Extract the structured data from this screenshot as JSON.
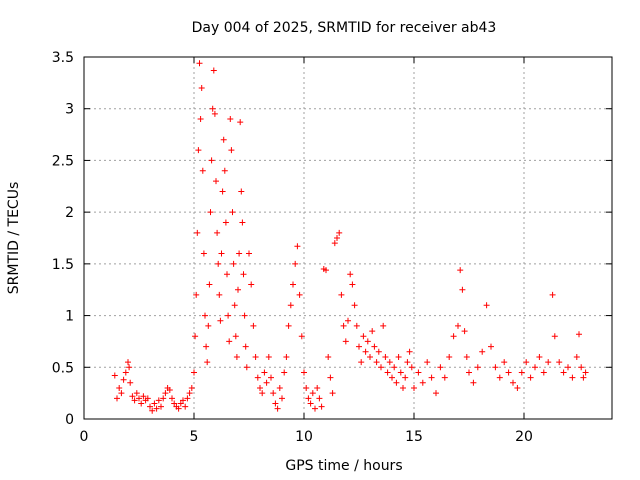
{
  "chart_data": {
    "type": "scatter",
    "title": "Day 004 of 2025, SRMTID for receiver ab43",
    "xlabel": "GPS time / hours",
    "ylabel": "SRMTID / TECUs",
    "xlim": [
      0,
      24
    ],
    "ylim": [
      0,
      3.5
    ],
    "xticks": [
      0,
      5,
      10,
      15,
      20
    ],
    "xtick_labels": [
      "0",
      "5",
      "10",
      "15",
      "20"
    ],
    "yticks": [
      0,
      0.5,
      1,
      1.5,
      2,
      2.5,
      3,
      3.5
    ],
    "ytick_labels": [
      "0",
      "0.5",
      "1",
      "1.5",
      "2",
      "2.5",
      "3",
      "3.5"
    ],
    "grid": true,
    "marker": "plus",
    "color": "#ff0000",
    "series": [
      {
        "name": "SRMTID",
        "points": [
          [
            1.4,
            0.42
          ],
          [
            1.5,
            0.2
          ],
          [
            1.6,
            0.3
          ],
          [
            1.7,
            0.25
          ],
          [
            1.8,
            0.38
          ],
          [
            1.9,
            0.45
          ],
          [
            2.0,
            0.55
          ],
          [
            2.05,
            0.5
          ],
          [
            2.1,
            0.35
          ],
          [
            2.2,
            0.22
          ],
          [
            2.3,
            0.18
          ],
          [
            2.4,
            0.25
          ],
          [
            2.5,
            0.2
          ],
          [
            2.6,
            0.15
          ],
          [
            2.7,
            0.22
          ],
          [
            2.8,
            0.18
          ],
          [
            2.9,
            0.2
          ],
          [
            3.0,
            0.12
          ],
          [
            3.1,
            0.08
          ],
          [
            3.2,
            0.15
          ],
          [
            3.3,
            0.1
          ],
          [
            3.4,
            0.18
          ],
          [
            3.5,
            0.12
          ],
          [
            3.6,
            0.2
          ],
          [
            3.7,
            0.25
          ],
          [
            3.8,
            0.3
          ],
          [
            3.9,
            0.28
          ],
          [
            4.0,
            0.2
          ],
          [
            4.1,
            0.15
          ],
          [
            4.2,
            0.12
          ],
          [
            4.3,
            0.1
          ],
          [
            4.4,
            0.15
          ],
          [
            4.5,
            0.18
          ],
          [
            4.6,
            0.12
          ],
          [
            4.7,
            0.2
          ],
          [
            4.8,
            0.25
          ],
          [
            4.9,
            0.3
          ],
          [
            5.0,
            0.45
          ],
          [
            5.05,
            0.8
          ],
          [
            5.1,
            1.2
          ],
          [
            5.15,
            1.8
          ],
          [
            5.2,
            2.6
          ],
          [
            5.25,
            3.44
          ],
          [
            5.3,
            2.9
          ],
          [
            5.35,
            3.2
          ],
          [
            5.4,
            2.4
          ],
          [
            5.45,
            1.6
          ],
          [
            5.5,
            1.0
          ],
          [
            5.55,
            0.7
          ],
          [
            5.6,
            0.55
          ],
          [
            5.65,
            0.9
          ],
          [
            5.7,
            1.3
          ],
          [
            5.75,
            2.0
          ],
          [
            5.8,
            2.5
          ],
          [
            5.85,
            3.0
          ],
          [
            5.9,
            3.37
          ],
          [
            5.95,
            2.95
          ],
          [
            6.0,
            2.3
          ],
          [
            6.05,
            1.8
          ],
          [
            6.1,
            1.5
          ],
          [
            6.15,
            1.2
          ],
          [
            6.2,
            0.95
          ],
          [
            6.25,
            1.6
          ],
          [
            6.3,
            2.2
          ],
          [
            6.35,
            2.7
          ],
          [
            6.4,
            2.4
          ],
          [
            6.45,
            1.9
          ],
          [
            6.5,
            1.4
          ],
          [
            6.55,
            1.0
          ],
          [
            6.6,
            0.75
          ],
          [
            6.65,
            2.9
          ],
          [
            6.7,
            2.6
          ],
          [
            6.75,
            2.0
          ],
          [
            6.8,
            1.5
          ],
          [
            6.85,
            1.1
          ],
          [
            6.9,
            0.8
          ],
          [
            6.95,
            0.6
          ],
          [
            7.0,
            1.25
          ],
          [
            7.05,
            1.6
          ],
          [
            7.1,
            2.87
          ],
          [
            7.15,
            2.2
          ],
          [
            7.2,
            1.9
          ],
          [
            7.25,
            1.4
          ],
          [
            7.3,
            1.0
          ],
          [
            7.35,
            0.7
          ],
          [
            7.4,
            0.5
          ],
          [
            7.5,
            1.6
          ],
          [
            7.6,
            1.3
          ],
          [
            7.7,
            0.9
          ],
          [
            7.8,
            0.6
          ],
          [
            7.9,
            0.4
          ],
          [
            8.0,
            0.3
          ],
          [
            8.1,
            0.25
          ],
          [
            8.2,
            0.45
          ],
          [
            8.3,
            0.35
          ],
          [
            8.4,
            0.6
          ],
          [
            8.5,
            0.4
          ],
          [
            8.6,
            0.25
          ],
          [
            8.7,
            0.15
          ],
          [
            8.8,
            0.1
          ],
          [
            8.9,
            0.3
          ],
          [
            9.0,
            0.2
          ],
          [
            9.1,
            0.45
          ],
          [
            9.2,
            0.6
          ],
          [
            9.3,
            0.9
          ],
          [
            9.4,
            1.1
          ],
          [
            9.5,
            1.3
          ],
          [
            9.6,
            1.5
          ],
          [
            9.7,
            1.67
          ],
          [
            9.8,
            1.2
          ],
          [
            9.9,
            0.8
          ],
          [
            10.0,
            0.45
          ],
          [
            10.1,
            0.3
          ],
          [
            10.2,
            0.2
          ],
          [
            10.3,
            0.15
          ],
          [
            10.4,
            0.25
          ],
          [
            10.5,
            0.1
          ],
          [
            10.6,
            0.3
          ],
          [
            10.7,
            0.2
          ],
          [
            10.8,
            0.12
          ],
          [
            10.9,
            1.45
          ],
          [
            11.0,
            1.44
          ],
          [
            11.1,
            0.6
          ],
          [
            11.2,
            0.4
          ],
          [
            11.3,
            0.25
          ],
          [
            11.4,
            1.7
          ],
          [
            11.5,
            1.75
          ],
          [
            11.6,
            1.8
          ],
          [
            11.7,
            1.2
          ],
          [
            11.8,
            0.9
          ],
          [
            11.9,
            0.75
          ],
          [
            12.0,
            0.95
          ],
          [
            12.1,
            1.4
          ],
          [
            12.2,
            1.3
          ],
          [
            12.3,
            1.1
          ],
          [
            12.4,
            0.9
          ],
          [
            12.5,
            0.7
          ],
          [
            12.6,
            0.55
          ],
          [
            12.7,
            0.8
          ],
          [
            12.8,
            0.65
          ],
          [
            12.9,
            0.75
          ],
          [
            13.0,
            0.6
          ],
          [
            13.1,
            0.85
          ],
          [
            13.2,
            0.7
          ],
          [
            13.3,
            0.55
          ],
          [
            13.4,
            0.65
          ],
          [
            13.5,
            0.5
          ],
          [
            13.6,
            0.9
          ],
          [
            13.7,
            0.6
          ],
          [
            13.8,
            0.45
          ],
          [
            13.9,
            0.55
          ],
          [
            14.0,
            0.4
          ],
          [
            14.1,
            0.5
          ],
          [
            14.2,
            0.35
          ],
          [
            14.3,
            0.6
          ],
          [
            14.4,
            0.45
          ],
          [
            14.5,
            0.3
          ],
          [
            14.6,
            0.4
          ],
          [
            14.7,
            0.55
          ],
          [
            14.8,
            0.65
          ],
          [
            14.9,
            0.5
          ],
          [
            15.0,
            0.3
          ],
          [
            15.2,
            0.45
          ],
          [
            15.4,
            0.35
          ],
          [
            15.6,
            0.55
          ],
          [
            15.8,
            0.4
          ],
          [
            16.0,
            0.25
          ],
          [
            16.2,
            0.5
          ],
          [
            16.4,
            0.4
          ],
          [
            16.6,
            0.6
          ],
          [
            16.8,
            0.8
          ],
          [
            17.0,
            0.9
          ],
          [
            17.1,
            1.44
          ],
          [
            17.2,
            1.25
          ],
          [
            17.3,
            0.85
          ],
          [
            17.4,
            0.6
          ],
          [
            17.5,
            0.45
          ],
          [
            17.7,
            0.35
          ],
          [
            17.9,
            0.5
          ],
          [
            18.1,
            0.65
          ],
          [
            18.3,
            1.1
          ],
          [
            18.5,
            0.7
          ],
          [
            18.7,
            0.5
          ],
          [
            18.9,
            0.4
          ],
          [
            19.1,
            0.55
          ],
          [
            19.3,
            0.45
          ],
          [
            19.5,
            0.35
          ],
          [
            19.7,
            0.3
          ],
          [
            19.9,
            0.45
          ],
          [
            20.1,
            0.55
          ],
          [
            20.3,
            0.4
          ],
          [
            20.5,
            0.5
          ],
          [
            20.7,
            0.6
          ],
          [
            20.9,
            0.45
          ],
          [
            21.1,
            0.55
          ],
          [
            21.3,
            1.2
          ],
          [
            21.4,
            0.8
          ],
          [
            21.6,
            0.55
          ],
          [
            21.8,
            0.45
          ],
          [
            22.0,
            0.5
          ],
          [
            22.2,
            0.4
          ],
          [
            22.4,
            0.6
          ],
          [
            22.5,
            0.82
          ],
          [
            22.6,
            0.5
          ],
          [
            22.7,
            0.4
          ],
          [
            22.8,
            0.45
          ]
        ]
      }
    ]
  }
}
